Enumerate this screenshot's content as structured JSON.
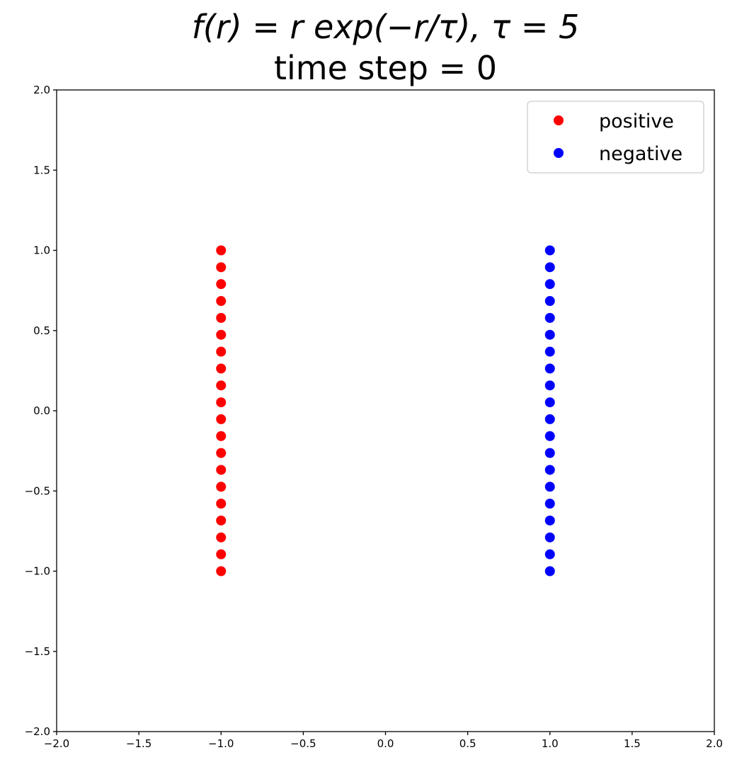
{
  "chart_data": {
    "type": "scatter",
    "title_line1": "f(r) = r exp(−r/τ),  τ = 5",
    "title_line2": "time step = 0",
    "xlabel": "",
    "ylabel": "",
    "xlim": [
      -2.0,
      2.0
    ],
    "ylim": [
      -2.0,
      2.0
    ],
    "xticks": [
      "−2.0",
      "−1.5",
      "−1.0",
      "−0.5",
      "0.0",
      "0.5",
      "1.0",
      "1.5",
      "2.0"
    ],
    "yticks": [
      "−2.0",
      "−1.5",
      "−1.0",
      "−0.5",
      "0.0",
      "0.5",
      "1.0",
      "1.5",
      "2.0"
    ],
    "grid": false,
    "legend_position": "top-right",
    "series": [
      {
        "name": "positive",
        "color": "#ff0000",
        "x": -1.0,
        "y": [
          -1.0,
          -0.8947,
          -0.7895,
          -0.6842,
          -0.5789,
          -0.4737,
          -0.3684,
          -0.2632,
          -0.1579,
          -0.0526,
          0.0526,
          0.1579,
          0.2632,
          0.3684,
          0.4737,
          0.5789,
          0.6842,
          0.7895,
          0.8947,
          1.0
        ]
      },
      {
        "name": "negative",
        "color": "#0000ff",
        "x": 1.0,
        "y": [
          -1.0,
          -0.8947,
          -0.7895,
          -0.6842,
          -0.5789,
          -0.4737,
          -0.3684,
          -0.2632,
          -0.1579,
          -0.0526,
          0.0526,
          0.1579,
          0.2632,
          0.3684,
          0.4737,
          0.5789,
          0.6842,
          0.7895,
          0.8947,
          1.0
        ]
      }
    ]
  }
}
